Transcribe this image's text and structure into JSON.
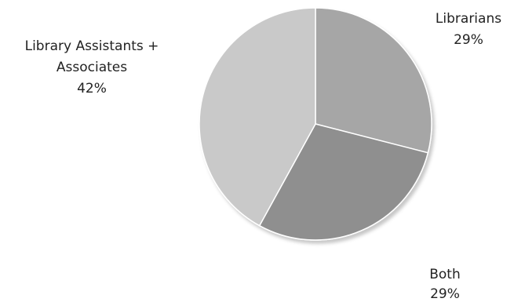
{
  "chart_data": {
    "type": "pie",
    "title": "",
    "start_angle_deg": 0,
    "direction": "clockwise",
    "slices": [
      {
        "label": "Librarians",
        "percent_label": "29%",
        "value": 29,
        "color": "#a6a6a6"
      },
      {
        "label": "Both",
        "percent_label": "29%",
        "value": 29,
        "color": "#8f8f8f"
      },
      {
        "label": "Library Assistants + Associates",
        "percent_label": "42%",
        "value": 42,
        "color": "#c9c9c9"
      }
    ]
  }
}
